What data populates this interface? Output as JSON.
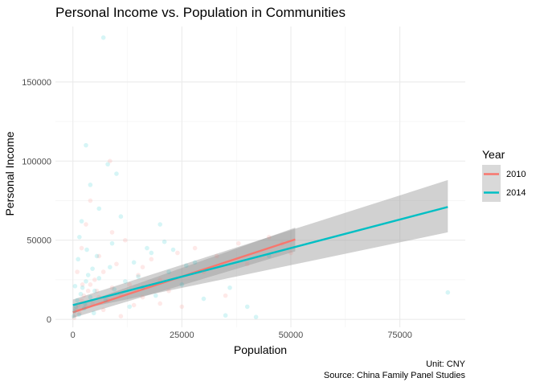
{
  "chart_data": {
    "type": "scatter",
    "title": "Personal Income vs. Population in Communities",
    "xlabel": "Population",
    "ylabel": "Personal Income",
    "xlim": [
      -4000,
      90000
    ],
    "ylim": [
      -5000,
      185000
    ],
    "x_ticks": [
      0,
      25000,
      50000,
      75000
    ],
    "y_ticks": [
      0,
      50000,
      100000,
      150000
    ],
    "x_tick_labels": [
      "0",
      "25000",
      "50000",
      "75000"
    ],
    "y_tick_labels": [
      "0",
      "50000",
      "100000",
      "150000"
    ],
    "grid": true,
    "legend": {
      "title": "Year",
      "position": "right",
      "entries": [
        {
          "label": "2010",
          "color": "#f8766d"
        },
        {
          "label": "2014",
          "color": "#00bfc4"
        }
      ]
    },
    "caption": [
      "Unit: CNY",
      "Source: China Family Panel Studies"
    ],
    "series": [
      {
        "name": "2010",
        "color": "#f8766d",
        "points": [
          [
            300,
            1000
          ],
          [
            500,
            3000
          ],
          [
            800,
            6000
          ],
          [
            1200,
            9000
          ],
          [
            1500,
            4000
          ],
          [
            2000,
            12000
          ],
          [
            2500,
            15000
          ],
          [
            3000,
            8000
          ],
          [
            3500,
            18000
          ],
          [
            4000,
            22000
          ],
          [
            4500,
            10000
          ],
          [
            5000,
            25000
          ],
          [
            6000,
            14000
          ],
          [
            7000,
            30000
          ],
          [
            8000,
            12000
          ],
          [
            8500,
            100000
          ],
          [
            9000,
            20000
          ],
          [
            10000,
            35000
          ],
          [
            11000,
            16000
          ],
          [
            12000,
            50000
          ],
          [
            13000,
            22000
          ],
          [
            14000,
            9000
          ],
          [
            15000,
            28000
          ],
          [
            16000,
            14000
          ],
          [
            18000,
            38000
          ],
          [
            20000,
            25000
          ],
          [
            22000,
            18000
          ],
          [
            25000,
            8000
          ],
          [
            28000,
            45000
          ],
          [
            30000,
            30000
          ],
          [
            33000,
            40000
          ],
          [
            35000,
            15000
          ],
          [
            38000,
            48000
          ],
          [
            40000,
            35000
          ],
          [
            45000,
            52000
          ],
          [
            48000,
            48000
          ],
          [
            50000,
            42000
          ],
          [
            3000,
            60000
          ],
          [
            4000,
            75000
          ],
          [
            6000,
            40000
          ],
          [
            9000,
            55000
          ],
          [
            2000,
            45000
          ],
          [
            1000,
            30000
          ],
          [
            7000,
            6000
          ],
          [
            11000,
            2000
          ],
          [
            16000,
            33000
          ],
          [
            20000,
            10000
          ],
          [
            24000,
            42000
          ],
          [
            2200,
            22000
          ],
          [
            5500,
            18000
          ]
        ],
        "trend": {
          "x0": 0,
          "y0": 4500,
          "x1": 51000,
          "y1": 50500,
          "ci_low_end": 43000,
          "ci_high_end": 58000
        }
      },
      {
        "name": "2014",
        "color": "#00bfc4",
        "points": [
          [
            200,
            2000
          ],
          [
            400,
            5000
          ],
          [
            700,
            8000
          ],
          [
            1000,
            12000
          ],
          [
            1400,
            3000
          ],
          [
            1800,
            16000
          ],
          [
            2200,
            20000
          ],
          [
            2600,
            7000
          ],
          [
            3000,
            24000
          ],
          [
            3500,
            28000
          ],
          [
            4000,
            14000
          ],
          [
            4500,
            32000
          ],
          [
            5000,
            18000
          ],
          [
            5500,
            40000
          ],
          [
            6000,
            26000
          ],
          [
            7000,
            178000
          ],
          [
            3000,
            110000
          ],
          [
            8000,
            98000
          ],
          [
            10000,
            92000
          ],
          [
            12000,
            24000
          ],
          [
            14000,
            36000
          ],
          [
            16000,
            20000
          ],
          [
            18000,
            42000
          ],
          [
            20000,
            60000
          ],
          [
            21000,
            49000
          ],
          [
            22000,
            30000
          ],
          [
            25000,
            22000
          ],
          [
            28000,
            36000
          ],
          [
            30000,
            13000
          ],
          [
            35000,
            2500
          ],
          [
            36000,
            20000
          ],
          [
            40000,
            8000
          ],
          [
            42000,
            1500
          ],
          [
            45000,
            40000
          ],
          [
            86000,
            17000
          ],
          [
            2000,
            62000
          ],
          [
            4000,
            85000
          ],
          [
            6000,
            70000
          ],
          [
            9000,
            48000
          ],
          [
            11000,
            65000
          ],
          [
            1500,
            52000
          ],
          [
            3200,
            44000
          ],
          [
            7500,
            12000
          ],
          [
            8500,
            33000
          ],
          [
            13000,
            8000
          ],
          [
            15000,
            27000
          ],
          [
            17000,
            45000
          ],
          [
            19000,
            15000
          ],
          [
            23000,
            44000
          ],
          [
            26000,
            34000
          ],
          [
            500,
            21000
          ],
          [
            1200,
            38000
          ],
          [
            2800,
            10000
          ],
          [
            4800,
            4000
          ],
          [
            9500,
            19000
          ]
        ],
        "trend": {
          "x0": 0,
          "y0": 9000,
          "x1": 86000,
          "y1": 71000,
          "ci_low_end": 55000,
          "ci_high_end": 88000
        }
      }
    ]
  }
}
